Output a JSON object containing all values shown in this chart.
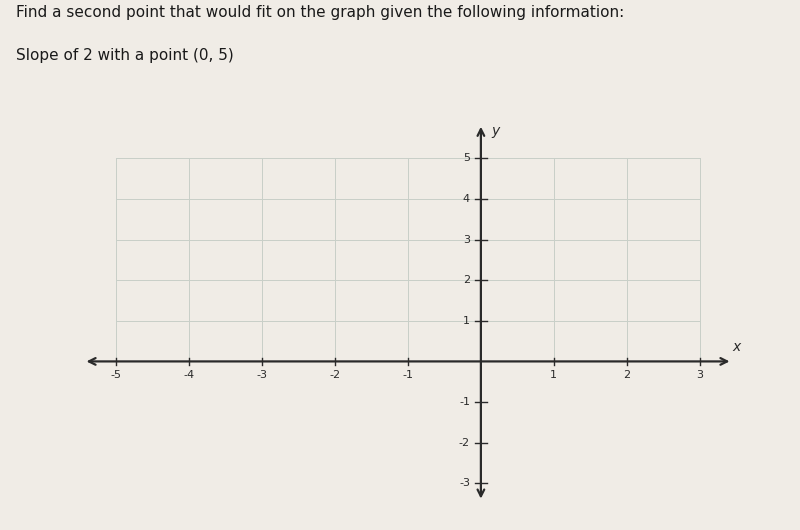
{
  "title_line1": "Find a second point that would fit on the graph given the following information:",
  "title_line2": "Slope of 2 with a point (0, 5)",
  "background_color": "#f0ece6",
  "grid_color": "#c8cfc8",
  "axis_color": "#2a2a2a",
  "tick_color": "#2a2a2a",
  "text_color": "#1a1a1a",
  "x_min": -5,
  "x_max": 3,
  "y_min": -3,
  "y_max": 5,
  "grid_x_min": -5,
  "grid_x_max": 3,
  "grid_y_min": 0,
  "grid_y_max": 5,
  "x_ticks": [
    -5,
    -4,
    -3,
    -2,
    -1,
    1,
    2,
    3
  ],
  "y_ticks": [
    -3,
    -2,
    -1,
    1,
    2,
    3,
    4,
    5
  ],
  "tick_fontsize": 8,
  "title_fontsize": 11,
  "axis_label_fontsize": 10
}
